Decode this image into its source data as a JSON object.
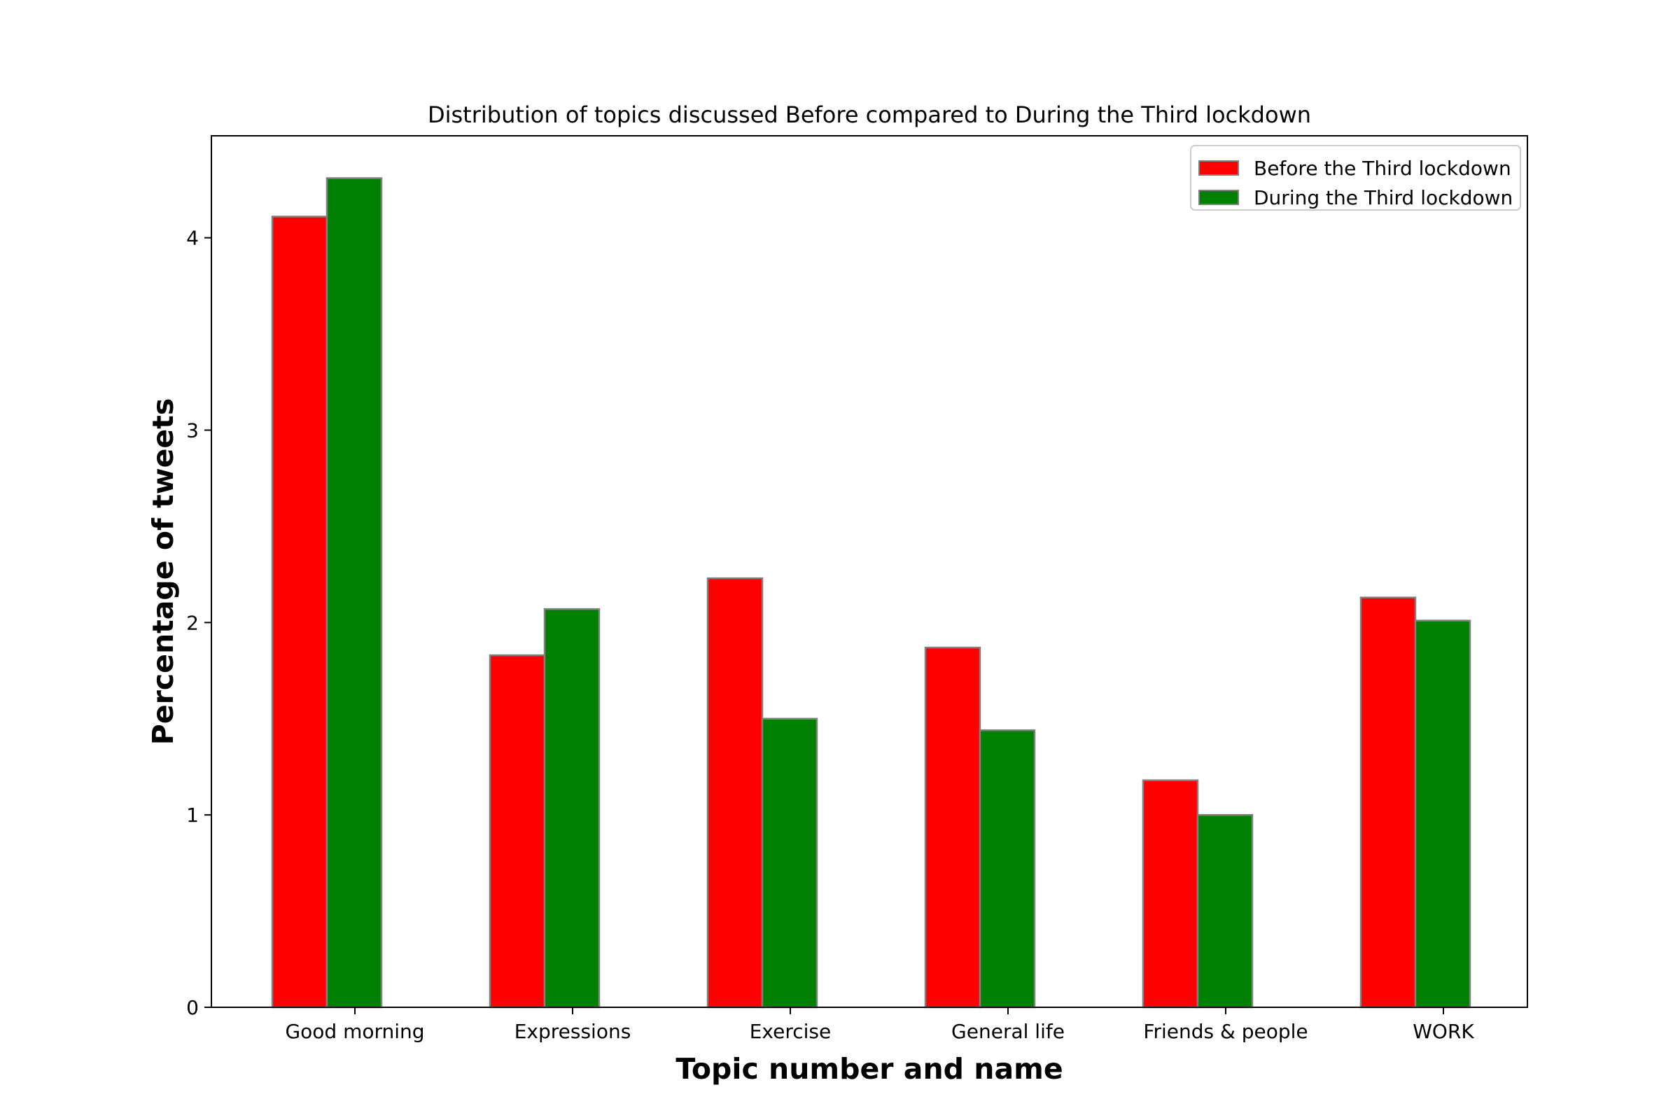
{
  "chart_data": {
    "type": "bar",
    "title": "Distribution of topics discussed Before compared to During the Third lockdown",
    "xlabel": "Topic number and name",
    "ylabel": "Percentage of tweets",
    "categories": [
      "Good morning",
      "Expressions",
      "Exercise",
      "General life",
      "Friends & people",
      "WORK"
    ],
    "series": [
      {
        "name": "Before the Third lockdown",
        "color": "#ff0000",
        "values": [
          4.11,
          1.83,
          2.23,
          1.87,
          1.18,
          2.13
        ]
      },
      {
        "name": "During the Third lockdown",
        "color": "#008000",
        "values": [
          4.31,
          2.07,
          1.5,
          1.44,
          1.0,
          2.01
        ]
      }
    ],
    "ylim": [
      0,
      4.53
    ],
    "yticks": [
      0,
      1,
      2,
      3,
      4
    ],
    "grid": false,
    "legend_position": "top-right",
    "bar_edge_color": "#808080"
  }
}
